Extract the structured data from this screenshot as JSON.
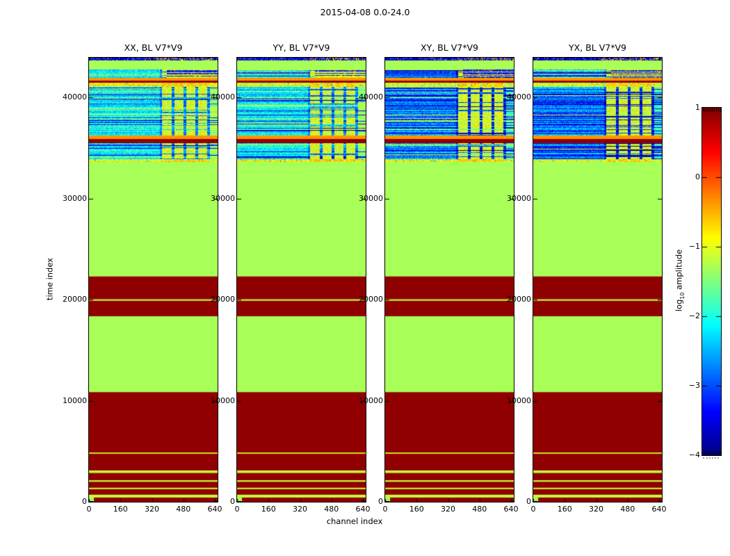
{
  "figure": {
    "title": "2015-04-08 0.0-24.0",
    "xlabel": "channel index",
    "ylabel": "time index",
    "colorbar_label_text": "log",
    "colorbar_label_sub": "10",
    "colorbar_label_rest": " amplitude"
  },
  "chart_data": {
    "type": "heatmap",
    "title": "2015-04-08 0.0-24.0",
    "xlabel": "channel index",
    "ylabel": "time index",
    "x_range": [
      0,
      654
    ],
    "x_ticks": [
      0,
      160,
      320,
      480,
      640
    ],
    "y_range": [
      0,
      43920
    ],
    "y_ticks": [
      0,
      10000,
      20000,
      30000,
      40000
    ],
    "grid": false,
    "colormap": "jet",
    "background": "#ffffff",
    "panels": [
      {
        "title": "XX, BL V7*V9",
        "seed": 101,
        "noise_navy_prob": 0.18,
        "noise_base": -2.15
      },
      {
        "title": "YY, BL V7*V9",
        "seed": 202,
        "noise_navy_prob": 0.18,
        "noise_base": -2.15
      },
      {
        "title": "XY, BL V7*V9",
        "seed": 303,
        "noise_navy_prob": 0.4,
        "noise_base": -2.55
      },
      {
        "title": "YX, BL V7*V9",
        "seed": 404,
        "noise_navy_prob": 0.4,
        "noise_base": -2.55
      }
    ],
    "colorbar": {
      "range": [
        -4,
        1
      ],
      "ticks": [
        1,
        0,
        -1,
        -2,
        -3,
        -4
      ],
      "position": "right"
    },
    "solid_bands": [
      {
        "y0": 0,
        "y1": 10850,
        "v": 0.92
      },
      {
        "y0": 420,
        "y1": 700,
        "v": -1.15
      },
      {
        "y0": 1250,
        "y1": 1390,
        "v": -1.15
      },
      {
        "y0": 1980,
        "y1": 2130,
        "v": -1.15
      },
      {
        "y0": 2850,
        "y1": 3100,
        "v": -1.15
      },
      {
        "y0": 4750,
        "y1": 4870,
        "v": -1.05
      },
      {
        "y0": 10850,
        "y1": 18350,
        "v": -1.3
      },
      {
        "y0": 18350,
        "y1": 22300,
        "v": 0.92
      },
      {
        "y0": 19880,
        "y1": 20030,
        "v": -1.15
      },
      {
        "y0": 22300,
        "y1": 33650,
        "v": -1.3
      },
      {
        "y0": 35400,
        "y1": 35880,
        "v": 0.92
      },
      {
        "y0": 35880,
        "y1": 36240,
        "v": -0.35
      },
      {
        "y0": 41380,
        "y1": 41650,
        "v": 0.92
      },
      {
        "y0": 41650,
        "y1": 41950,
        "v": -0.35
      },
      {
        "y0": 42740,
        "y1": 43650,
        "v": -1.3
      }
    ],
    "origin_marker": {
      "x0": 0,
      "x1": 25,
      "y0": 40,
      "y1": 430,
      "v": -1.3
    },
    "noise_bands": [
      {
        "y0": 33650,
        "y1": 33890,
        "kind": "warm"
      },
      {
        "y0": 33890,
        "y1": 35400,
        "kind": "cool"
      },
      {
        "y0": 36240,
        "y1": 41100,
        "kind": "cool"
      },
      {
        "y0": 41100,
        "y1": 41380,
        "kind": "warm"
      },
      {
        "y0": 41950,
        "y1": 42740,
        "kind": "split"
      },
      {
        "y0": 43650,
        "y1": 43920,
        "kind": "navy"
      }
    ],
    "column_blocks": [
      [
        370,
        420
      ],
      [
        432,
        478
      ],
      [
        492,
        538
      ],
      [
        552,
        600
      ]
    ],
    "column_zone": [
      360,
      612
    ],
    "right_strip": [
      612,
      654
    ]
  }
}
